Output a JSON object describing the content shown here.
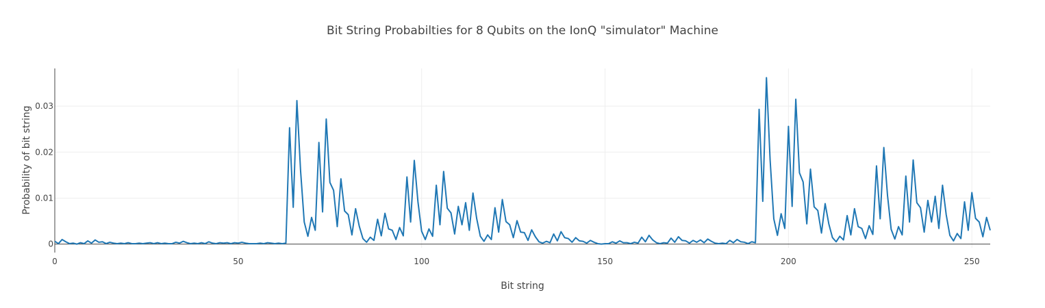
{
  "chart_data": {
    "type": "line",
    "title": "Bit String Probabilties for 8 Qubits on the IonQ \"simulator\" Machine",
    "xlabel": "Bit string",
    "ylabel": "Probability of bit string",
    "xlim": [
      0,
      255
    ],
    "ylim": [
      -0.0008,
      0.0382
    ],
    "x_ticks": [
      0,
      50,
      100,
      150,
      200,
      250
    ],
    "x_tick_labels": [
      "0",
      "50",
      "100",
      "150",
      "200",
      "250"
    ],
    "y_ticks": [
      0,
      0.01,
      0.02,
      0.03
    ],
    "y_tick_labels": [
      "0",
      "0.01",
      "0.02",
      "0.03"
    ],
    "grid": true,
    "line_color": "#1f77b4",
    "grid_color": "#eeeeee",
    "series": [
      {
        "x_start": 0,
        "values": [
          0.0006,
          0.0001,
          0.001,
          0.0005,
          0.0001,
          0.0002,
          0.0,
          0.0003,
          0.0001,
          0.0007,
          0.0002,
          0.0009,
          0.0004,
          0.0005,
          0.0001,
          0.0004,
          0.0002,
          0.0001,
          0.0002,
          0.0001,
          0.0003,
          0.0001,
          0.0001,
          0.0002,
          0.0001,
          0.0002,
          0.0003,
          0.0001,
          0.0003,
          0.0001,
          0.0002,
          0.0001,
          0.0001,
          0.0004,
          0.0002,
          0.0006,
          0.0003,
          0.0001,
          0.0002,
          0.0001,
          0.0003,
          0.0001,
          0.0005,
          0.0002,
          0.0001,
          0.0003,
          0.0002,
          0.0003,
          0.0001,
          0.0003,
          0.0002,
          0.0004,
          0.0002,
          0.0001,
          0.0001,
          0.0001,
          0.0002,
          0.0001,
          0.0003,
          0.0002,
          0.0001,
          0.0002,
          0.0001,
          0.0002,
          0.0253,
          0.008,
          0.0312,
          0.016,
          0.0048,
          0.0017,
          0.0058,
          0.003,
          0.0221,
          0.007,
          0.0272,
          0.0134,
          0.0117,
          0.0038,
          0.0142,
          0.0072,
          0.0064,
          0.002,
          0.0077,
          0.0039,
          0.0012,
          0.0004,
          0.0015,
          0.0008,
          0.0054,
          0.0018,
          0.0067,
          0.0033,
          0.003,
          0.001,
          0.0036,
          0.0018,
          0.0146,
          0.0048,
          0.0182,
          0.0092,
          0.0028,
          0.001,
          0.0033,
          0.0017,
          0.0128,
          0.0042,
          0.0158,
          0.0078,
          0.0068,
          0.0022,
          0.0082,
          0.0042,
          0.009,
          0.003,
          0.0111,
          0.0056,
          0.0017,
          0.0006,
          0.002,
          0.001,
          0.0079,
          0.0026,
          0.0097,
          0.0049,
          0.0042,
          0.0014,
          0.0051,
          0.0026,
          0.0025,
          0.0008,
          0.0031,
          0.0016,
          0.0005,
          0.0002,
          0.0006,
          0.0003,
          0.0022,
          0.0007,
          0.0027,
          0.0014,
          0.0012,
          0.0004,
          0.0014,
          0.0007,
          0.0006,
          0.0002,
          0.0008,
          0.0004,
          0.0001,
          0.0,
          0.0001,
          0.0001,
          0.0005,
          0.0002,
          0.0007,
          0.0003,
          0.0003,
          0.0001,
          0.0004,
          0.0002,
          0.0015,
          0.0005,
          0.0019,
          0.0009,
          0.0003,
          0.0001,
          0.0003,
          0.0002,
          0.0013,
          0.0004,
          0.0016,
          0.0008,
          0.0007,
          0.0002,
          0.0008,
          0.0004,
          0.0009,
          0.0003,
          0.0011,
          0.0006,
          0.0002,
          0.0001,
          0.0002,
          0.0001,
          0.0008,
          0.0003,
          0.001,
          0.0005,
          0.0004,
          0.0001,
          0.0005,
          0.0003,
          0.0293,
          0.0093,
          0.0362,
          0.0183,
          0.0055,
          0.0019,
          0.0066,
          0.0034,
          0.0256,
          0.0082,
          0.0315,
          0.0155,
          0.0135,
          0.0044,
          0.0163,
          0.0081,
          0.0073,
          0.0024,
          0.0088,
          0.0044,
          0.0014,
          0.0005,
          0.0017,
          0.0009,
          0.0062,
          0.002,
          0.0077,
          0.0038,
          0.0034,
          0.0012,
          0.004,
          0.0021,
          0.017,
          0.0055,
          0.021,
          0.0106,
          0.0032,
          0.0011,
          0.0038,
          0.002,
          0.0148,
          0.0048,
          0.0183,
          0.009,
          0.0079,
          0.0026,
          0.0095,
          0.0048,
          0.0104,
          0.0034,
          0.0128,
          0.0064,
          0.0019,
          0.0007,
          0.0023,
          0.0012,
          0.0092,
          0.003,
          0.0112,
          0.0056,
          0.0048,
          0.0016,
          0.0058,
          0.003
        ]
      }
    ]
  }
}
